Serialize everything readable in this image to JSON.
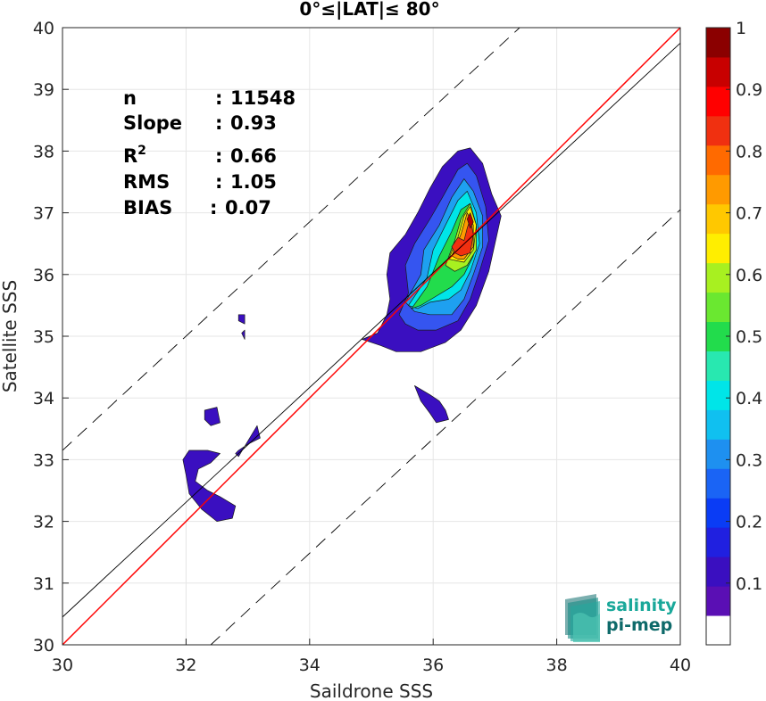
{
  "chart_data": {
    "type": "heatmap",
    "title": "0°≤|LAT|≤ 80°",
    "xlabel": "Saildrone SSS",
    "ylabel": "Satellite SSS",
    "xlim": [
      30,
      40
    ],
    "ylim": [
      30,
      40
    ],
    "x_ticks": [
      "30",
      "32",
      "34",
      "36",
      "38",
      "40"
    ],
    "y_ticks": [
      "30",
      "31",
      "32",
      "33",
      "34",
      "35",
      "36",
      "37",
      "38",
      "39",
      "40"
    ],
    "grid": true,
    "stats": [
      {
        "label": "n",
        "sep": ":",
        "value": "11548"
      },
      {
        "label": "Slope",
        "sep": ":",
        "value": "0.93"
      },
      {
        "label": "R",
        "sup": "2",
        "sep": ":",
        "value": "0.66"
      },
      {
        "label": "RMS",
        "sep": ":",
        "value": "1.05"
      },
      {
        "label": "BIAS",
        "sep": ":",
        "value": "0.07"
      }
    ],
    "lines": [
      {
        "role": "one-to-one",
        "color": "#ff0000",
        "points": [
          [
            30,
            30
          ],
          [
            40,
            40
          ]
        ]
      },
      {
        "role": "regression",
        "color": "#000000",
        "points": [
          [
            30,
            30.45
          ],
          [
            40,
            39.75
          ]
        ]
      },
      {
        "role": "upper-bound",
        "color": "#000000",
        "dashed": true,
        "points": [
          [
            30,
            33.15
          ],
          [
            37.4,
            40
          ]
        ]
      },
      {
        "role": "lower-bound",
        "color": "#000000",
        "dashed": true,
        "points": [
          [
            32.4,
            30
          ],
          [
            40,
            37.05
          ]
        ]
      }
    ],
    "density_levels": [
      {
        "level": 0.05,
        "color": "#3a0fc0",
        "polygons": [
          [
            [
              34.85,
              34.95
            ],
            [
              35.1,
              35.05
            ],
            [
              35.25,
              35.35
            ],
            [
              35.3,
              35.6
            ],
            [
              35.25,
              36.0
            ],
            [
              35.3,
              36.35
            ],
            [
              35.55,
              36.65
            ],
            [
              35.75,
              37.0
            ],
            [
              35.95,
              37.4
            ],
            [
              36.15,
              37.75
            ],
            [
              36.4,
              38.0
            ],
            [
              36.6,
              38.05
            ],
            [
              36.8,
              37.8
            ],
            [
              36.95,
              37.3
            ],
            [
              37.1,
              36.95
            ],
            [
              37.0,
              36.5
            ],
            [
              36.9,
              36.05
            ],
            [
              36.7,
              35.5
            ],
            [
              36.45,
              35.1
            ],
            [
              36.2,
              34.9
            ],
            [
              35.8,
              34.75
            ],
            [
              35.4,
              34.75
            ],
            [
              35.15,
              34.85
            ]
          ],
          [
            [
              35.7,
              34.2
            ],
            [
              35.95,
              34.05
            ],
            [
              36.1,
              33.95
            ],
            [
              36.2,
              33.8
            ],
            [
              36.25,
              33.65
            ],
            [
              36.05,
              33.6
            ],
            [
              35.95,
              33.75
            ],
            [
              35.8,
              33.95
            ]
          ],
          [
            [
              32.15,
              32.65
            ],
            [
              32.35,
              32.5
            ],
            [
              32.55,
              32.4
            ],
            [
              32.8,
              32.25
            ],
            [
              32.75,
              32.05
            ],
            [
              32.5,
              32.0
            ],
            [
              32.25,
              32.2
            ],
            [
              32.05,
              32.45
            ],
            [
              32.0,
              32.75
            ],
            [
              31.95,
              33.0
            ],
            [
              32.05,
              33.15
            ],
            [
              32.35,
              33.15
            ],
            [
              32.55,
              33.1
            ],
            [
              32.4,
              32.95
            ],
            [
              32.2,
              32.85
            ]
          ],
          [
            [
              32.85,
              33.05
            ],
            [
              33.15,
              33.55
            ],
            [
              33.2,
              33.35
            ],
            [
              33.0,
              33.25
            ],
            [
              32.85,
              33.15
            ],
            [
              32.8,
              33.1
            ]
          ],
          [
            [
              32.3,
              33.8
            ],
            [
              32.5,
              33.85
            ],
            [
              32.55,
              33.6
            ],
            [
              32.4,
              33.55
            ],
            [
              32.3,
              33.65
            ]
          ],
          [
            [
              32.85,
              35.35
            ],
            [
              32.95,
              35.35
            ],
            [
              32.95,
              35.2
            ],
            [
              32.85,
              35.25
            ]
          ],
          [
            [
              32.9,
              35.05
            ],
            [
              32.95,
              35.1
            ],
            [
              32.95,
              34.95
            ]
          ]
        ]
      },
      {
        "level": 0.15,
        "color": "#3555f0",
        "polygons": [
          [
            [
              35.45,
              35.35
            ],
            [
              35.6,
              35.7
            ],
            [
              35.55,
              36.15
            ],
            [
              35.7,
              36.5
            ],
            [
              35.95,
              36.9
            ],
            [
              36.15,
              37.25
            ],
            [
              36.4,
              37.7
            ],
            [
              36.55,
              37.8
            ],
            [
              36.7,
              37.6
            ],
            [
              36.85,
              37.1
            ],
            [
              36.9,
              36.55
            ],
            [
              36.75,
              36.05
            ],
            [
              36.6,
              35.6
            ],
            [
              36.4,
              35.25
            ],
            [
              36.05,
              35.1
            ],
            [
              35.75,
              35.1
            ],
            [
              35.55,
              35.2
            ]
          ]
        ]
      },
      {
        "level": 0.25,
        "color": "#1ea0f0",
        "polygons": [
          [
            [
              35.55,
              35.55
            ],
            [
              35.8,
              36.0
            ],
            [
              35.85,
              36.4
            ],
            [
              36.1,
              36.8
            ],
            [
              36.3,
              37.25
            ],
            [
              36.5,
              37.55
            ],
            [
              36.65,
              37.35
            ],
            [
              36.8,
              36.95
            ],
            [
              36.8,
              36.45
            ],
            [
              36.65,
              36.0
            ],
            [
              36.5,
              35.6
            ],
            [
              36.3,
              35.35
            ],
            [
              35.95,
              35.35
            ],
            [
              35.7,
              35.4
            ]
          ]
        ]
      },
      {
        "level": 0.35,
        "color": "#00e5e8",
        "polygons": [
          [
            [
              35.6,
              35.5
            ],
            [
              35.9,
              35.95
            ],
            [
              36.0,
              36.4
            ],
            [
              36.2,
              36.8
            ],
            [
              36.4,
              37.2
            ],
            [
              36.55,
              37.35
            ],
            [
              36.7,
              37.0
            ],
            [
              36.75,
              36.5
            ],
            [
              36.6,
              36.05
            ],
            [
              36.45,
              35.75
            ],
            [
              36.25,
              35.6
            ],
            [
              35.95,
              35.55
            ],
            [
              35.75,
              35.45
            ]
          ]
        ]
      },
      {
        "level": 0.45,
        "color": "#22dc4c",
        "polygons": [
          [
            [
              35.65,
              35.45
            ],
            [
              35.9,
              35.8
            ],
            [
              36.1,
              36.3
            ],
            [
              36.3,
              36.7
            ],
            [
              36.45,
              37.05
            ],
            [
              36.6,
              37.15
            ],
            [
              36.7,
              36.75
            ],
            [
              36.65,
              36.3
            ],
            [
              36.5,
              36.0
            ],
            [
              36.3,
              35.8
            ],
            [
              36.05,
              35.65
            ],
            [
              35.8,
              35.5
            ]
          ]
        ]
      },
      {
        "level": 0.55,
        "color": "#a8f020",
        "polygons": [
          [
            [
              36.2,
              36.15
            ],
            [
              36.35,
              36.55
            ],
            [
              36.45,
              36.9
            ],
            [
              36.6,
              37.15
            ],
            [
              36.7,
              36.8
            ],
            [
              36.7,
              36.4
            ],
            [
              36.55,
              36.15
            ],
            [
              36.35,
              36.05
            ]
          ]
        ]
      },
      {
        "level": 0.65,
        "color": "#ffee00",
        "polygons": [
          [
            [
              36.25,
              36.25
            ],
            [
              36.4,
              36.6
            ],
            [
              36.5,
              36.95
            ],
            [
              36.6,
              37.1
            ],
            [
              36.7,
              36.8
            ],
            [
              36.65,
              36.4
            ],
            [
              36.5,
              36.2
            ]
          ]
        ]
      },
      {
        "level": 0.75,
        "color": "#ff9a00",
        "polygons": [
          [
            [
              36.3,
              36.3
            ],
            [
              36.45,
              36.65
            ],
            [
              36.55,
              37.0
            ],
            [
              36.65,
              36.8
            ],
            [
              36.65,
              36.45
            ],
            [
              36.5,
              36.25
            ],
            [
              36.4,
              36.25
            ]
          ]
        ]
      },
      {
        "level": 0.85,
        "color": "#f03010",
        "polygons": [
          [
            [
              36.3,
              36.45
            ],
            [
              36.4,
              36.6
            ],
            [
              36.5,
              36.55
            ],
            [
              36.55,
              36.75
            ],
            [
              36.6,
              36.9
            ],
            [
              36.65,
              36.65
            ],
            [
              36.6,
              36.35
            ],
            [
              36.45,
              36.3
            ],
            [
              36.35,
              36.35
            ]
          ]
        ]
      },
      {
        "level": 0.95,
        "color": "#b80000",
        "polygons": [
          [
            [
              36.55,
              36.9
            ],
            [
              36.6,
              37.0
            ],
            [
              36.65,
              36.85
            ],
            [
              36.6,
              36.75
            ]
          ]
        ]
      }
    ],
    "colorbar": {
      "range": [
        0,
        1
      ],
      "ticks": [
        "0.1",
        "0.2",
        "0.3",
        "0.4",
        "0.5",
        "0.6",
        "0.7",
        "0.8",
        "0.9",
        "1"
      ],
      "colors": [
        "#ffffff",
        "#5a0fb4",
        "#3a0fc0",
        "#2020e0",
        "#0a3cf5",
        "#1a64f5",
        "#1e90f0",
        "#10c0f0",
        "#00e5e8",
        "#28e8b0",
        "#22dc4c",
        "#6ae830",
        "#a8f020",
        "#ffee00",
        "#ffc800",
        "#ff9a00",
        "#ff6a00",
        "#f03010",
        "#ff0000",
        "#c80000",
        "#8b0000"
      ]
    },
    "logo": {
      "line1": "salinity",
      "line2": "pi-mep"
    }
  }
}
